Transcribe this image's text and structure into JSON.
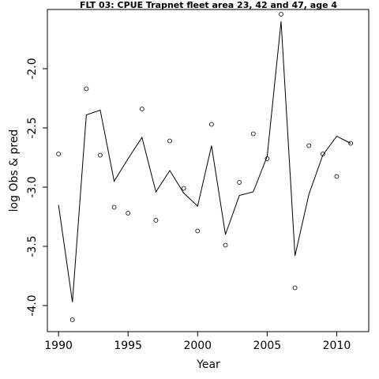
{
  "chart_data": {
    "type": "line",
    "title": "FLT 03: CPUE Trapnet fleet area 23, 42 and 47, age 4",
    "xlabel": "Year",
    "ylabel": "log Obs & pred",
    "xlim": [
      1989.2,
      2012.3
    ],
    "ylim": [
      -4.22,
      -1.5
    ],
    "x_ticks": [
      1990,
      1995,
      2000,
      2005,
      2010
    ],
    "y_ticks": [
      -4.0,
      -3.5,
      -3.0,
      -2.5,
      -2.0
    ],
    "x_tick_labels": [
      "1990",
      "1995",
      "2000",
      "2005",
      "2010"
    ],
    "y_tick_labels": [
      "-4.0",
      "-3.5",
      "-3.0",
      "-2.5",
      "-2.0"
    ],
    "grid": false,
    "series": [
      {
        "kind": "points",
        "x": [
          1990,
          1991,
          1992,
          1993,
          1994,
          1995,
          1996,
          1997,
          1998,
          1999,
          2000,
          2001,
          2002,
          2003,
          2004,
          2005,
          2006,
          2007,
          2008,
          2009,
          2010,
          2011
        ],
        "y": [
          -2.72,
          -4.12,
          -2.17,
          -2.73,
          -3.17,
          -3.22,
          -2.34,
          -3.28,
          -2.61,
          -3.01,
          -3.37,
          -2.47,
          -3.49,
          -2.96,
          -2.55,
          -2.76,
          -1.54,
          -3.85,
          -2.65,
          -2.72,
          -2.91,
          -2.63
        ]
      },
      {
        "kind": "line",
        "x": [
          1990,
          1991,
          1992,
          1993,
          1994,
          1995,
          1996,
          1997,
          1998,
          1999,
          2000,
          2001,
          2002,
          2003,
          2004,
          2005,
          2006,
          2007,
          2008,
          2009,
          2010,
          2011
        ],
        "y": [
          -3.15,
          -3.97,
          -2.39,
          -2.35,
          -2.95,
          -2.76,
          -2.58,
          -3.04,
          -2.86,
          -3.05,
          -3.16,
          -2.65,
          -3.4,
          -3.07,
          -3.04,
          -2.74,
          -1.6,
          -3.58,
          -3.06,
          -2.73,
          -2.57,
          -2.63
        ]
      }
    ]
  }
}
